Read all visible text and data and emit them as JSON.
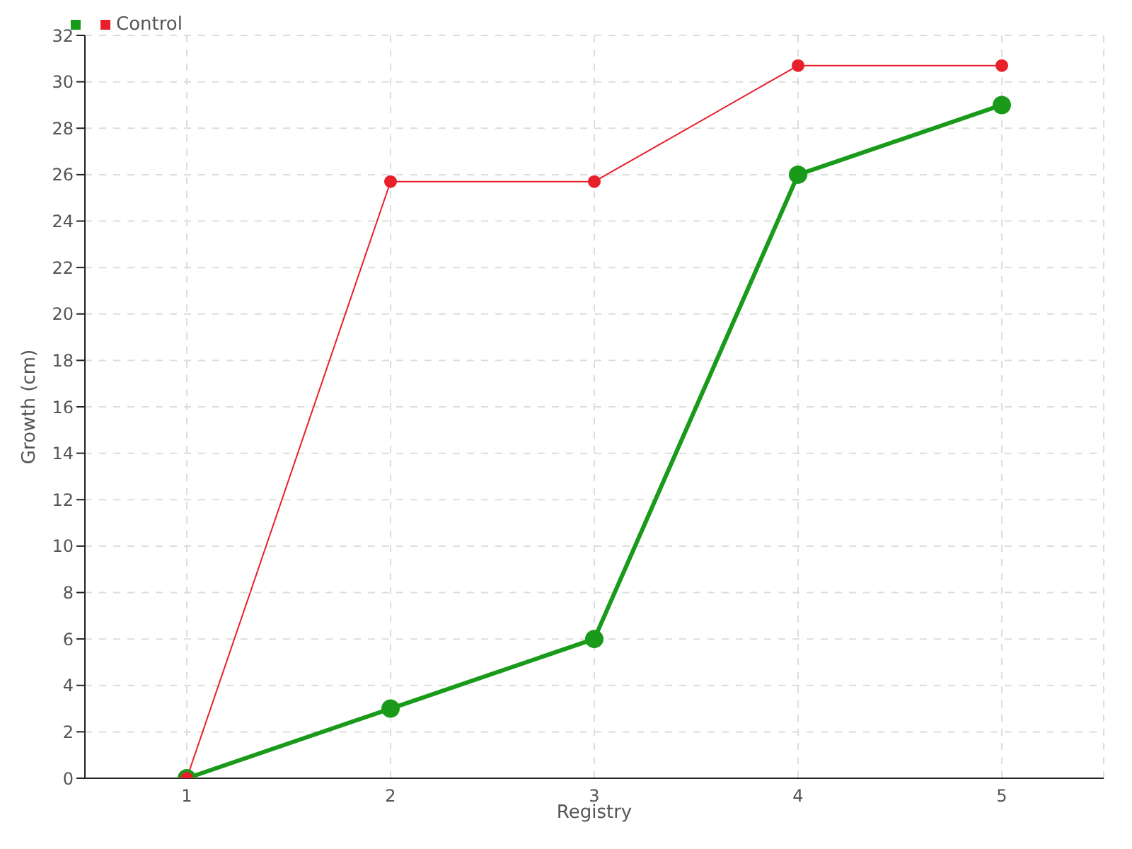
{
  "chart_data": {
    "type": "line",
    "xlabel": "Registry",
    "ylabel": "Growth (cm)",
    "x": [
      1,
      2,
      3,
      4,
      5
    ],
    "xlim": [
      0.5,
      5.5
    ],
    "xticks": [
      1,
      2,
      3,
      4,
      5
    ],
    "ylim": [
      0,
      32
    ],
    "yticks": [
      0,
      2,
      4,
      6,
      8,
      10,
      12,
      14,
      16,
      18,
      20,
      22,
      24,
      26,
      28,
      30,
      32
    ],
    "grid": true,
    "legend": "top left",
    "marker": "circle",
    "series": [
      {
        "color": "#1a9a1a",
        "values": [
          0,
          3,
          6,
          26,
          29
        ]
      },
      {
        "name": "Control",
        "color": "#e8202a",
        "values": [
          0,
          25.7,
          25.7,
          30.7,
          30.7
        ]
      }
    ]
  }
}
